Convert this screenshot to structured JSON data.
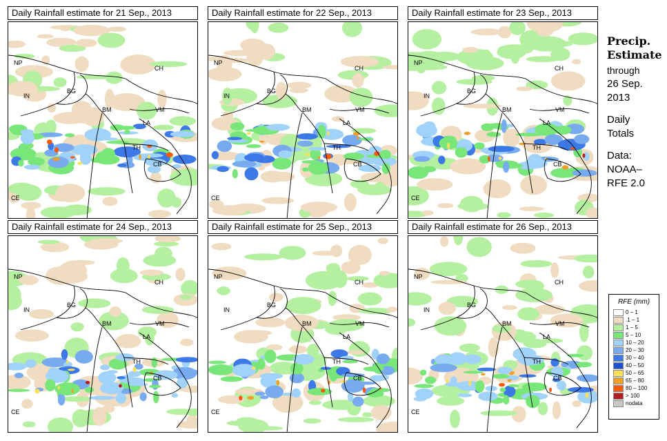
{
  "panels": [
    {
      "title": "Daily Rainfall estimate for  21 Sep., 2013"
    },
    {
      "title": "Daily Rainfall estimate for  22 Sep., 2013"
    },
    {
      "title": "Daily Rainfall estimate for  23 Sep., 2013"
    },
    {
      "title": "Daily Rainfall estimate for  24 Sep., 2013"
    },
    {
      "title": "Daily Rainfall estimate for  25 Sep., 2013"
    },
    {
      "title": "Daily Rainfall estimate for  26 Sep., 2013"
    }
  ],
  "country_labels": {
    "np": "NP",
    "ch": "CH",
    "in": "IN",
    "bg": "BG",
    "bm": "BM",
    "vm": "VM",
    "la": "LA",
    "th": "TH",
    "cb": "CB",
    "ce": "CE"
  },
  "side": {
    "title_line1": "Precip.",
    "title_line2": "Estimate",
    "through": "through",
    "date_line1": "26 Sep.",
    "date_line2": "2013",
    "daily1": "Daily",
    "daily2": "Totals",
    "data1": "Data:",
    "data2": "NOAA–",
    "data3": "RFE 2.0"
  },
  "legend": {
    "title": "RFE (mm)",
    "items": [
      {
        "label": "0 – 1",
        "color": "#ffffff"
      },
      {
        "label": ".1 – 1",
        "color": "#f0dcc0"
      },
      {
        "label": "1 – 5",
        "color": "#b4f0a0"
      },
      {
        "label": "5 – 10",
        "color": "#78e678"
      },
      {
        "label": "10 – 20",
        "color": "#a0d2fa"
      },
      {
        "label": "20 – 30",
        "color": "#78aaf0"
      },
      {
        "label": "30 – 40",
        "color": "#3c78e6"
      },
      {
        "label": "40 – 50",
        "color": "#1e50d2"
      },
      {
        "label": "50 – 65",
        "color": "#fae15a"
      },
      {
        "label": "65 – 80",
        "color": "#f0a028"
      },
      {
        "label": "80 – 100",
        "color": "#fa5a0a"
      },
      {
        "label": "> 100",
        "color": "#b41e1e"
      },
      {
        "label": "nodata",
        "color": "#c8c8c8"
      }
    ]
  }
}
